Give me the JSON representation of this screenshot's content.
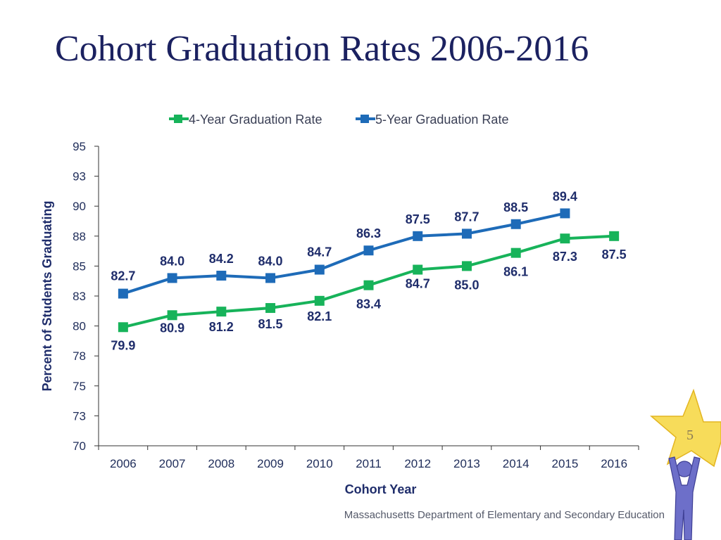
{
  "slide": {
    "title": "Cohort Graduation Rates 2006-2016",
    "page_number": "5",
    "footer": "Massachusetts Department of Elementary and Secondary Education"
  },
  "colors": {
    "title": "#1b2160",
    "series_4yr": "#17b35a",
    "series_5yr": "#1e6bb8",
    "label": "#1f2d6b",
    "axis": "#333333",
    "star": "#f7dc5a"
  },
  "chart_data": {
    "type": "line",
    "title": "",
    "xlabel": "Cohort Year",
    "ylabel": "Percent of Students Graduating",
    "x": [
      "2006",
      "2007",
      "2008",
      "2009",
      "2010",
      "2011",
      "2012",
      "2013",
      "2014",
      "2015",
      "2016"
    ],
    "y_ticks": [
      70,
      73,
      75,
      78,
      80,
      83,
      85,
      88,
      90,
      93,
      95
    ],
    "ylim": [
      70,
      95
    ],
    "grid": false,
    "legend_position": "top",
    "series": [
      {
        "name": "4-Year Graduation Rate",
        "color": "#17b35a",
        "values": [
          79.9,
          80.9,
          81.2,
          81.5,
          82.1,
          83.4,
          84.7,
          85.0,
          86.1,
          87.3,
          87.5
        ]
      },
      {
        "name": "5-Year Graduation Rate",
        "color": "#1e6bb8",
        "values": [
          82.7,
          84.0,
          84.2,
          84.0,
          84.7,
          86.3,
          87.5,
          87.7,
          88.5,
          89.4,
          null
        ]
      }
    ]
  }
}
